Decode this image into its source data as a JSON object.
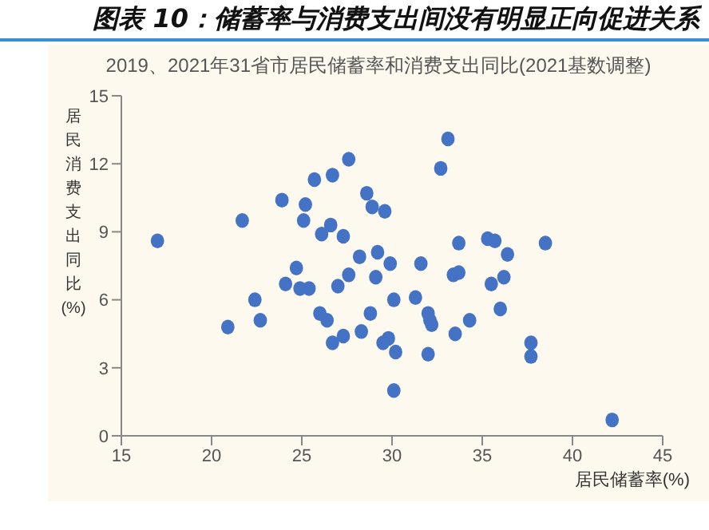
{
  "chart_data": {
    "type": "scatter",
    "title": "图表 10：储蓄率与消费支出间没有明显正向促进关系",
    "subtitle": "2019、2021年31省市居民储蓄率和消费支出同比(2021基数调整)",
    "xlabel": "居民储蓄率(%)",
    "ylabel": "居民消费支出同比(%)",
    "x": [
      17.0,
      20.9,
      21.7,
      22.4,
      22.7,
      23.9,
      24.1,
      24.7,
      24.9,
      25.1,
      25.2,
      25.4,
      25.7,
      26.1,
      26.0,
      26.4,
      26.6,
      26.7,
      26.7,
      27.0,
      27.3,
      27.3,
      27.6,
      27.6,
      28.2,
      28.3,
      28.6,
      28.8,
      28.9,
      29.2,
      29.1,
      29.6,
      29.5,
      29.8,
      29.9,
      30.1,
      30.2,
      30.1,
      31.3,
      31.6,
      32.0,
      32.1,
      32.2,
      32.0,
      32.7,
      33.1,
      33.4,
      33.7,
      33.7,
      33.5,
      34.3,
      35.3,
      35.7,
      36.4,
      35.5,
      36.2,
      36.0,
      38.5,
      37.7,
      37.7,
      42.2
    ],
    "series": [
      {
        "color": "#4472c4",
        "values": [
          8.6,
          4.8,
          9.5,
          6.0,
          5.1,
          10.4,
          6.7,
          7.4,
          6.5,
          9.5,
          10.2,
          6.5,
          11.3,
          8.9,
          5.4,
          5.1,
          9.3,
          4.1,
          11.5,
          6.6,
          8.8,
          4.4,
          7.1,
          12.2,
          7.9,
          4.6,
          10.7,
          5.4,
          10.1,
          8.1,
          7.0,
          9.9,
          4.1,
          4.3,
          7.6,
          6.0,
          3.7,
          2.0,
          6.1,
          7.6,
          5.4,
          5.1,
          4.9,
          3.6,
          11.8,
          13.1,
          7.1,
          7.2,
          8.5,
          4.5,
          5.1,
          8.7,
          8.6,
          8.0,
          6.7,
          7.0,
          5.6,
          8.5,
          4.1,
          3.5,
          0.7
        ]
      }
    ],
    "xlim": [
      15,
      45
    ],
    "xticks": [
      15,
      20,
      25,
      30,
      35,
      40,
      45
    ],
    "ylim": [
      0,
      15
    ],
    "yticks": [
      0,
      3,
      6,
      9,
      12,
      15
    ],
    "grid": false,
    "legend": false,
    "marker": "circle"
  }
}
